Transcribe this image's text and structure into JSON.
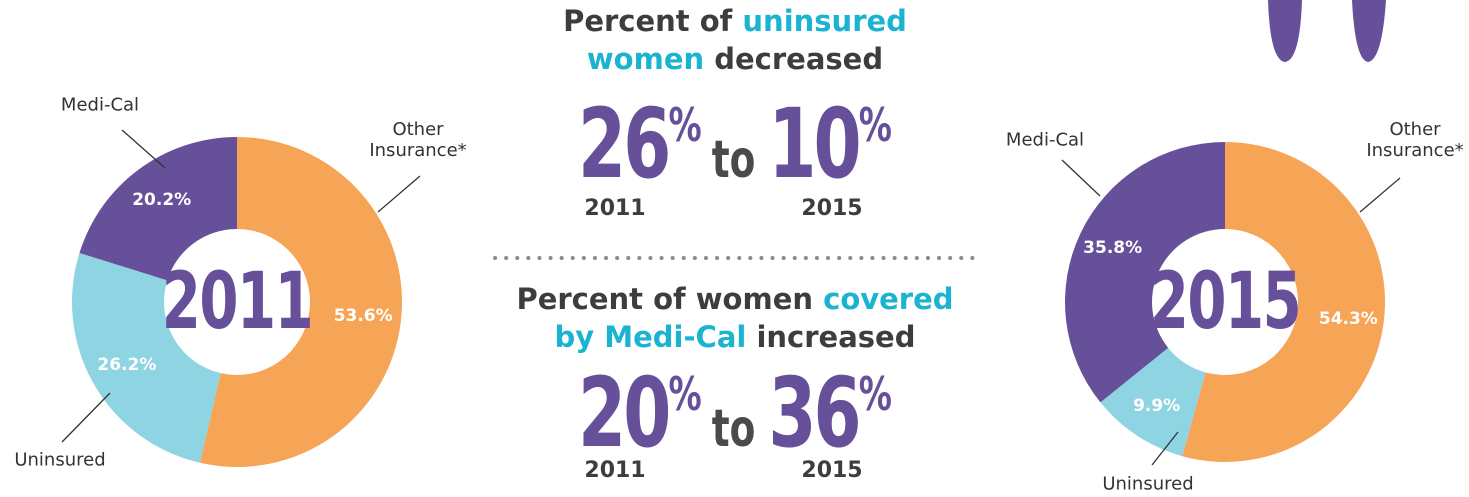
{
  "chart_data": [
    {
      "type": "pie",
      "center_label": "2011",
      "categories": [
        "Other Insurance*",
        "Uninsured",
        "Medi-Cal"
      ],
      "values": [
        53.6,
        26.2,
        20.2
      ],
      "value_labels": [
        "53.6%",
        "26.2%",
        "20.2%"
      ],
      "colors": [
        "#f6a456",
        "#8ed4e3",
        "#66509a"
      ]
    },
    {
      "type": "pie",
      "center_label": "2015",
      "categories": [
        "Other Insurance*",
        "Uninsured",
        "Medi-Cal"
      ],
      "values": [
        54.3,
        9.9,
        35.8
      ],
      "value_labels": [
        "54.3%",
        "9.9%",
        "35.8%"
      ],
      "colors": [
        "#f6a456",
        "#8ed4e3",
        "#66509a"
      ]
    }
  ],
  "highlight_color": "#1ab3d1",
  "comparisons": [
    {
      "headline_lines": [
        [
          {
            "text": "Percent of"
          },
          {
            "text": "uninsured",
            "highlight": true
          }
        ],
        [
          {
            "text": "women",
            "highlight": true
          },
          {
            "text": "decreased"
          }
        ]
      ],
      "from": "26",
      "to": "10",
      "unit": "%",
      "connector": "to",
      "from_year": "2011",
      "to_year": "2015"
    },
    {
      "headline_lines": [
        [
          {
            "text": "Percent of women"
          },
          {
            "text": "covered",
            "highlight": true
          }
        ],
        [
          {
            "text": "by Medi-Cal",
            "highlight": true
          },
          {
            "text": "increased"
          }
        ]
      ],
      "from": "20",
      "to": "36",
      "unit": "%",
      "connector": "to",
      "from_year": "2011",
      "to_year": "2015"
    }
  ]
}
